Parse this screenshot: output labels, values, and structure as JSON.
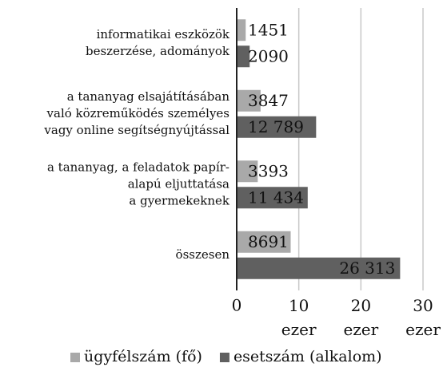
{
  "chart_data": {
    "type": "hbar",
    "categories": [
      "informatikai eszközök\nbeszerzése, adományok",
      "a tananyag elsajátításában\nvaló közreműködés személyes\nvagy online segítségnyújtással",
      "a tananyag, a feladatok papír-\nalapú eljuttatása\na gyermekeknek",
      "összesen"
    ],
    "series": [
      {
        "name": "ügyfélszám (fő)",
        "color": "#a9a9a9",
        "values": [
          1451,
          3847,
          3393,
          8691
        ],
        "value_labels": [
          "1451",
          "3847",
          "3393",
          "8691"
        ]
      },
      {
        "name": "esetszám (alkalom)",
        "color": "#606060",
        "values": [
          2090,
          12789,
          11434,
          26313
        ],
        "value_labels": [
          "2090",
          "12 789",
          "11 434",
          "26 313"
        ]
      }
    ],
    "xlim": [
      0,
      30000
    ],
    "xticks": [
      0,
      {
        "value": 10000,
        "label": "10\nezer"
      },
      {
        "value": 20000,
        "label": "20\nezer"
      },
      {
        "value": 30000,
        "label": "30\nezer"
      }
    ],
    "grid": true,
    "legend": "bottom"
  }
}
